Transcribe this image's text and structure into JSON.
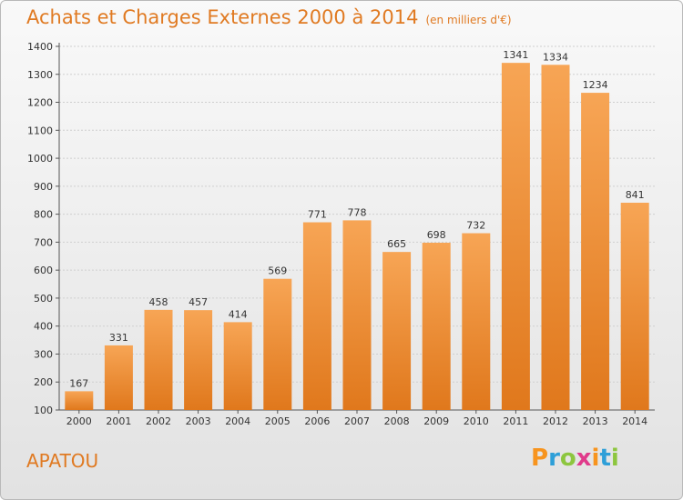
{
  "title": "Achats et Charges Externes 2000 à 2014",
  "unit": "(en milliers d'€)",
  "commune": "APATOU",
  "logo": {
    "text": "Proxiti",
    "letter_colors": [
      "#f7941e",
      "#2e9fd8",
      "#8dc63f",
      "#e03b8b",
      "#f7941e",
      "#2e9fd8",
      "#8dc63f"
    ]
  },
  "colors": {
    "bar_light": "#f7a555",
    "bar_dark": "#e0781c",
    "text": "#e07a22",
    "axis": "#555555"
  },
  "chart_data": {
    "type": "bar",
    "title": "Achats et Charges Externes 2000 à 2014",
    "subtitle": "(en milliers d'€)",
    "categories": [
      "2000",
      "2001",
      "2002",
      "2003",
      "2004",
      "2005",
      "2006",
      "2007",
      "2008",
      "2009",
      "2010",
      "2011",
      "2012",
      "2013",
      "2014"
    ],
    "values": [
      167,
      331,
      458,
      457,
      414,
      569,
      771,
      778,
      665,
      698,
      732,
      1341,
      1334,
      1234,
      841
    ],
    "ylim": [
      100,
      1400
    ],
    "yticks": [
      100,
      200,
      300,
      400,
      500,
      600,
      700,
      800,
      900,
      1000,
      1100,
      1200,
      1300,
      1400
    ],
    "grid": true
  }
}
